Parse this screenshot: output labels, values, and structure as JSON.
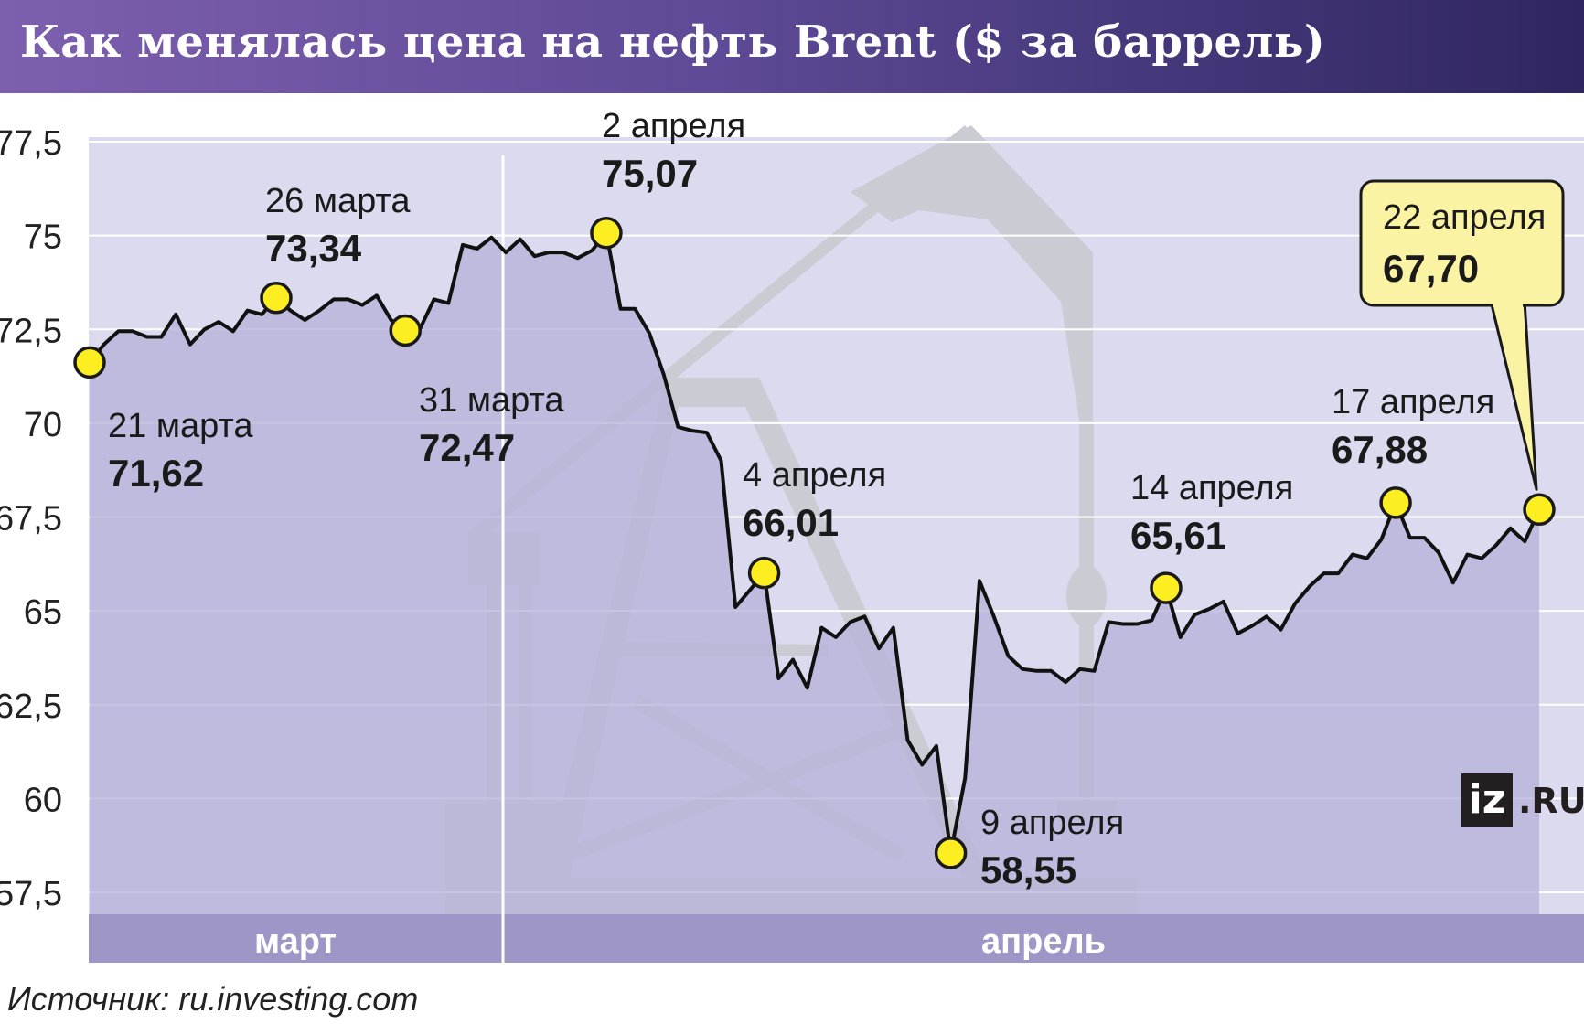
{
  "title": "Как менялась цена на нефть Brent ($ за баррель)",
  "source": "Источник: ru.investing.com",
  "logo": {
    "box": "iz",
    "suffix": ".RU"
  },
  "colors": {
    "area_fill": "#b7b2da",
    "plot_bg": "#dcdaee",
    "month_band": "#9d96c7",
    "rig_gray": "#cbcbd3",
    "marker": "#fcee21",
    "highlight_callout": "#f9f3a3",
    "line": "#111111"
  },
  "chart_data": {
    "type": "area",
    "title": "Как менялась цена на нефть Brent ($ за баррель)",
    "xlabel": "",
    "ylabel": "",
    "ylim": [
      56.5,
      78.5
    ],
    "yticks": [
      "77,5",
      "75",
      "72,5",
      "70",
      "67,5",
      "65",
      "62,5",
      "60",
      "57,5"
    ],
    "ytick_values": [
      77.5,
      75,
      72.5,
      70,
      67.5,
      65,
      62.5,
      60,
      57.5
    ],
    "grid": true,
    "months": [
      "март",
      "апрель"
    ],
    "series": [
      {
        "values": [
          71.62,
          72.1,
          72.45,
          72.45,
          72.3,
          72.3,
          72.9,
          72.1,
          72.5,
          72.7,
          72.45,
          73.0,
          72.9,
          73.34,
          73.0,
          72.75,
          73.0,
          73.3,
          73.3,
          73.15,
          73.4,
          72.75,
          72.47,
          72.5,
          73.3,
          73.2,
          74.75,
          74.65,
          74.95,
          74.55,
          74.9,
          74.45,
          74.55,
          74.55,
          74.4,
          74.6,
          75.07,
          73.05,
          73.05,
          72.4,
          71.3,
          69.9,
          69.8,
          69.75,
          69.0,
          65.1,
          65.55,
          66.01,
          63.2,
          63.7,
          62.95,
          64.55,
          64.3,
          64.7,
          64.85,
          64.0,
          64.55,
          61.55,
          60.9,
          61.4,
          58.55,
          60.55,
          65.8,
          64.85,
          63.8,
          63.45,
          63.4,
          63.4,
          63.1,
          63.45,
          63.4,
          64.7,
          64.65,
          64.65,
          64.75,
          65.61,
          64.3,
          64.9,
          65.05,
          65.25,
          64.4,
          64.6,
          64.85,
          64.5,
          65.2,
          65.65,
          66.0,
          66.0,
          66.5,
          66.4,
          66.9,
          67.88,
          66.95,
          66.95,
          66.55,
          65.75,
          66.5,
          66.4,
          66.75,
          67.2,
          66.85,
          67.7
        ]
      }
    ],
    "annotations": [
      {
        "date": "21 марта",
        "value": 71.62,
        "label": "71,62",
        "index": 0
      },
      {
        "date": "26 марта",
        "value": 73.34,
        "label": "73,34",
        "index": 13
      },
      {
        "date": "31 марта",
        "value": 72.47,
        "label": "72,47",
        "index": 22
      },
      {
        "date": "2 апреля",
        "value": 75.07,
        "label": "75,07",
        "index": 36
      },
      {
        "date": "4 апреля",
        "value": 66.01,
        "label": "66,01",
        "index": 47
      },
      {
        "date": "9 апреля",
        "value": 58.55,
        "label": "58,55",
        "index": 60
      },
      {
        "date": "14 апреля",
        "value": 65.61,
        "label": "65,61",
        "index": 75
      },
      {
        "date": "17 апреля",
        "value": 67.88,
        "label": "67,88",
        "index": 91
      },
      {
        "date": "22 апреля",
        "value": 67.7,
        "label": "67,70",
        "index": 101,
        "highlight": true
      }
    ]
  }
}
